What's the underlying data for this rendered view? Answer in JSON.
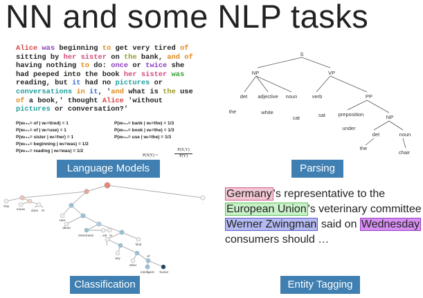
{
  "slide_title": "NN and some NLP tasks",
  "language_models": {
    "passage_lines": [
      [
        {
          "t": "Alice",
          "c": "c-red"
        },
        {
          "t": " was",
          "c": "c-purple"
        },
        {
          "t": " beginning ",
          "c": ""
        },
        {
          "t": "to",
          "c": "c-orange"
        },
        {
          "t": " get very tired ",
          "c": ""
        },
        {
          "t": "of",
          "c": "c-orange"
        }
      ],
      [
        {
          "t": "sitting by ",
          "c": ""
        },
        {
          "t": "her",
          "c": "c-pink"
        },
        {
          "t": " ",
          "c": ""
        },
        {
          "t": "sister",
          "c": "c-pink"
        },
        {
          "t": " on ",
          "c": ""
        },
        {
          "t": "the",
          "c": "c-olive"
        },
        {
          "t": " bank, ",
          "c": ""
        },
        {
          "t": "and",
          "c": "c-orange"
        },
        {
          "t": " ",
          "c": ""
        },
        {
          "t": "of",
          "c": "c-orange"
        }
      ],
      [
        {
          "t": "having nothing ",
          "c": ""
        },
        {
          "t": "to",
          "c": "c-orange"
        },
        {
          "t": " do: ",
          "c": ""
        },
        {
          "t": "once",
          "c": "c-purple"
        },
        {
          "t": " or ",
          "c": ""
        },
        {
          "t": "twice",
          "c": "c-purple"
        },
        {
          "t": " she",
          "c": ""
        }
      ],
      [
        {
          "t": "had peeped into the book ",
          "c": ""
        },
        {
          "t": "her",
          "c": "c-pink"
        },
        {
          "t": " ",
          "c": ""
        },
        {
          "t": "sister",
          "c": "c-pink"
        },
        {
          "t": " was",
          "c": "c-green"
        }
      ],
      [
        {
          "t": "reading, but ",
          "c": ""
        },
        {
          "t": "it",
          "c": "c-blue"
        },
        {
          "t": " had no ",
          "c": ""
        },
        {
          "t": "pictures",
          "c": "c-teal"
        },
        {
          "t": " or",
          "c": ""
        }
      ],
      [
        {
          "t": "conversations",
          "c": "c-teal"
        },
        {
          "t": " ",
          "c": ""
        },
        {
          "t": "in",
          "c": "c-orange"
        },
        {
          "t": " ",
          "c": ""
        },
        {
          "t": "it",
          "c": "c-blue"
        },
        {
          "t": ", '",
          "c": ""
        },
        {
          "t": "and",
          "c": "c-orange"
        },
        {
          "t": " what is ",
          "c": ""
        },
        {
          "t": "the",
          "c": "c-olive"
        },
        {
          "t": " use",
          "c": ""
        }
      ],
      [
        {
          "t": "of",
          "c": "c-orange"
        },
        {
          "t": " a book,' thought ",
          "c": ""
        },
        {
          "t": "Alice",
          "c": "c-red"
        },
        {
          "t": " 'without",
          "c": ""
        }
      ],
      [
        {
          "t": "pictures",
          "c": "c-teal"
        },
        {
          "t": " or conversation?'",
          "c": ""
        }
      ]
    ],
    "prob_left": [
      "P(wₜ₊₁= of | wₜ=tired) = 1",
      "P(wₜ₊₁= of | wₜ=use)   = 1",
      "P(wₜ₊₁= sister | wₜ=her) = 1",
      "P(wₜ₊₁= beginning | wₜ=was) = 1/2",
      "P(wₜ₊₁= reading | wₜ=was) = 1/2"
    ],
    "prob_right": [
      "P(wₜ₊₁= bank | wₜ=the) = 1/3",
      "P(wₜ₊₁= book | wₜ=the) = 1/3",
      "P(wₜ₊₁= use | wₜ=the) = 1/3"
    ],
    "formula_num": "P(X,Y)",
    "formula_den": "P(Y)",
    "formula_left": "P(X|Y) =",
    "label": "Language Models"
  },
  "parsing": {
    "nodes": {
      "S": "S",
      "NP": "NP",
      "VP": "VP",
      "det1": "det",
      "adj": "adjective",
      "noun1": "noun",
      "verb": "verb",
      "PP": "PP",
      "the1": "the",
      "white": "white",
      "cat": "cat",
      "sat": "sat",
      "prep": "preposition",
      "NP2": "NP",
      "under": "under",
      "det2": "det",
      "noun2": "noun",
      "the2": "the",
      "chair": "chair"
    },
    "label": "Parsing"
  },
  "classification": {
    "leaf_words": [
      "This",
      "movie",
      "does",
      "n't",
      "care",
      "about",
      "cleverness",
      ", wit",
      "or",
      "any",
      "other",
      "kind",
      "of",
      "intelligent",
      "humor",
      "."
    ],
    "label": "Classification"
  },
  "entity_tagging": {
    "e1": "Germany",
    "t1": "'s representative to the ",
    "e2": "European Union",
    "t2": "'s veterinary committee ",
    "e3": "Werner Zwingman",
    "t3": " said on ",
    "e4": "Wednesday",
    "t4": " consumers should …",
    "label": "Entity Tagging"
  },
  "colors": {
    "button_blue": "#3f7fb1",
    "node_red": "#e8857a",
    "node_blue": "#8fc3de",
    "node_dark": "#1d3f66",
    "node_gray": "#dcdcdc"
  }
}
